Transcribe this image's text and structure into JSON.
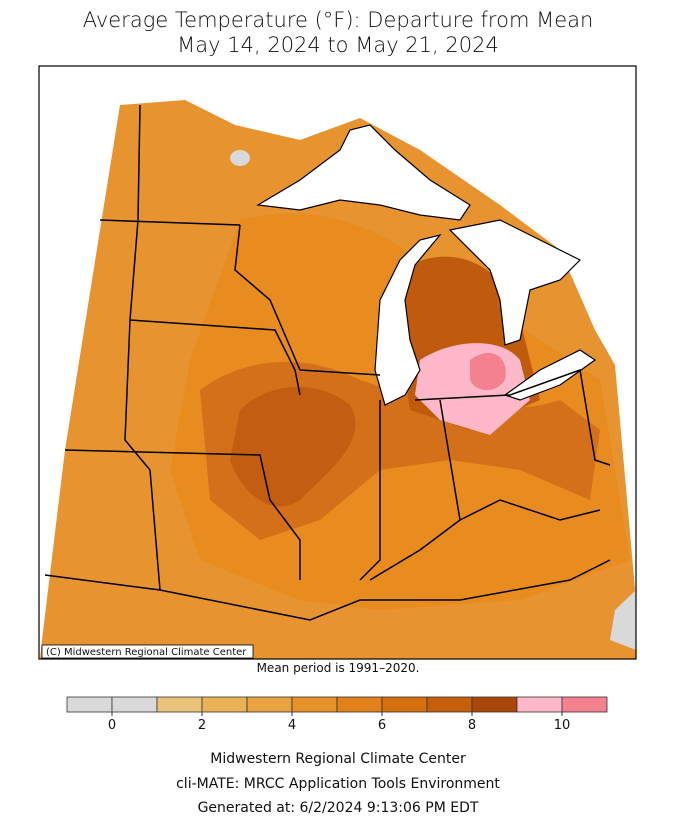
{
  "header": {
    "title_line1": "Average Temperature (°F): Departure from Mean",
    "title_line2": "May 14, 2024 to May 21, 2024"
  },
  "map": {
    "credit": "(C) Midwestern Regional Climate Center",
    "note": "Mean period is 1991–2020."
  },
  "legend": {
    "bins": [
      -1,
      0,
      1,
      2,
      3,
      4,
      5,
      6,
      7,
      8,
      9,
      10,
      11
    ],
    "colors": [
      "#d9d9d9",
      "#d9d9d9",
      "#e9c37a",
      "#e9b257",
      "#e8a23f",
      "#e7912a",
      "#e2801a",
      "#d56f10",
      "#c65e0c",
      "#a9470a",
      "#ffb8c9",
      "#f4818f"
    ],
    "ticks": [
      0,
      2,
      4,
      6,
      8,
      10
    ]
  },
  "footer": {
    "lines": [
      "Midwestern Regional Climate Center",
      "cli-MATE: MRCC Application Tools Environment",
      "Generated at: 6/2/2024 9:13:06 PM EDT"
    ]
  }
}
